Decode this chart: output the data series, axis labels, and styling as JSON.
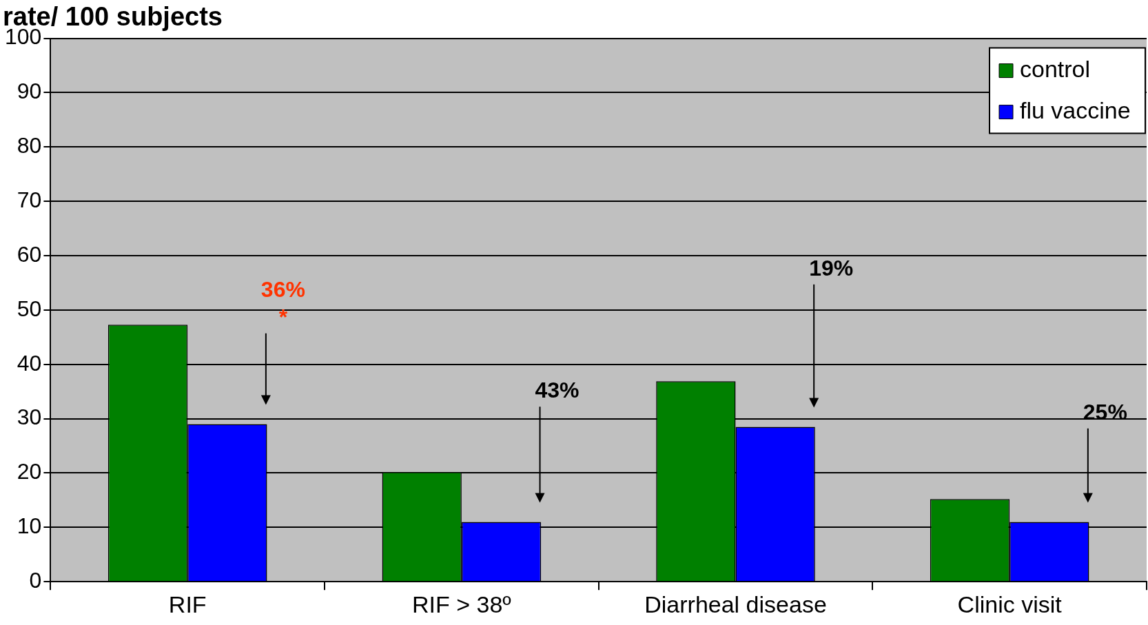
{
  "chart_data": {
    "type": "bar",
    "title": "rate/ 100 subjects",
    "categories": [
      "RIF",
      "RIF > 38º",
      "Diarrheal disease",
      "Clinic visit"
    ],
    "series": [
      {
        "name": "control",
        "color": "#008000",
        "values": [
          47.3,
          20.2,
          36.9,
          15.2
        ]
      },
      {
        "name": "flu vaccine",
        "color": "#0000ff",
        "values": [
          29,
          11,
          28.5,
          11
        ]
      }
    ],
    "ylim": [
      0,
      100
    ],
    "yticks": [
      0,
      10,
      20,
      30,
      40,
      50,
      60,
      70,
      80,
      90,
      100
    ],
    "grid": "y",
    "legend": "top right",
    "annotations": [
      "36%",
      "*",
      "43%",
      "19%",
      "25%"
    ]
  }
}
